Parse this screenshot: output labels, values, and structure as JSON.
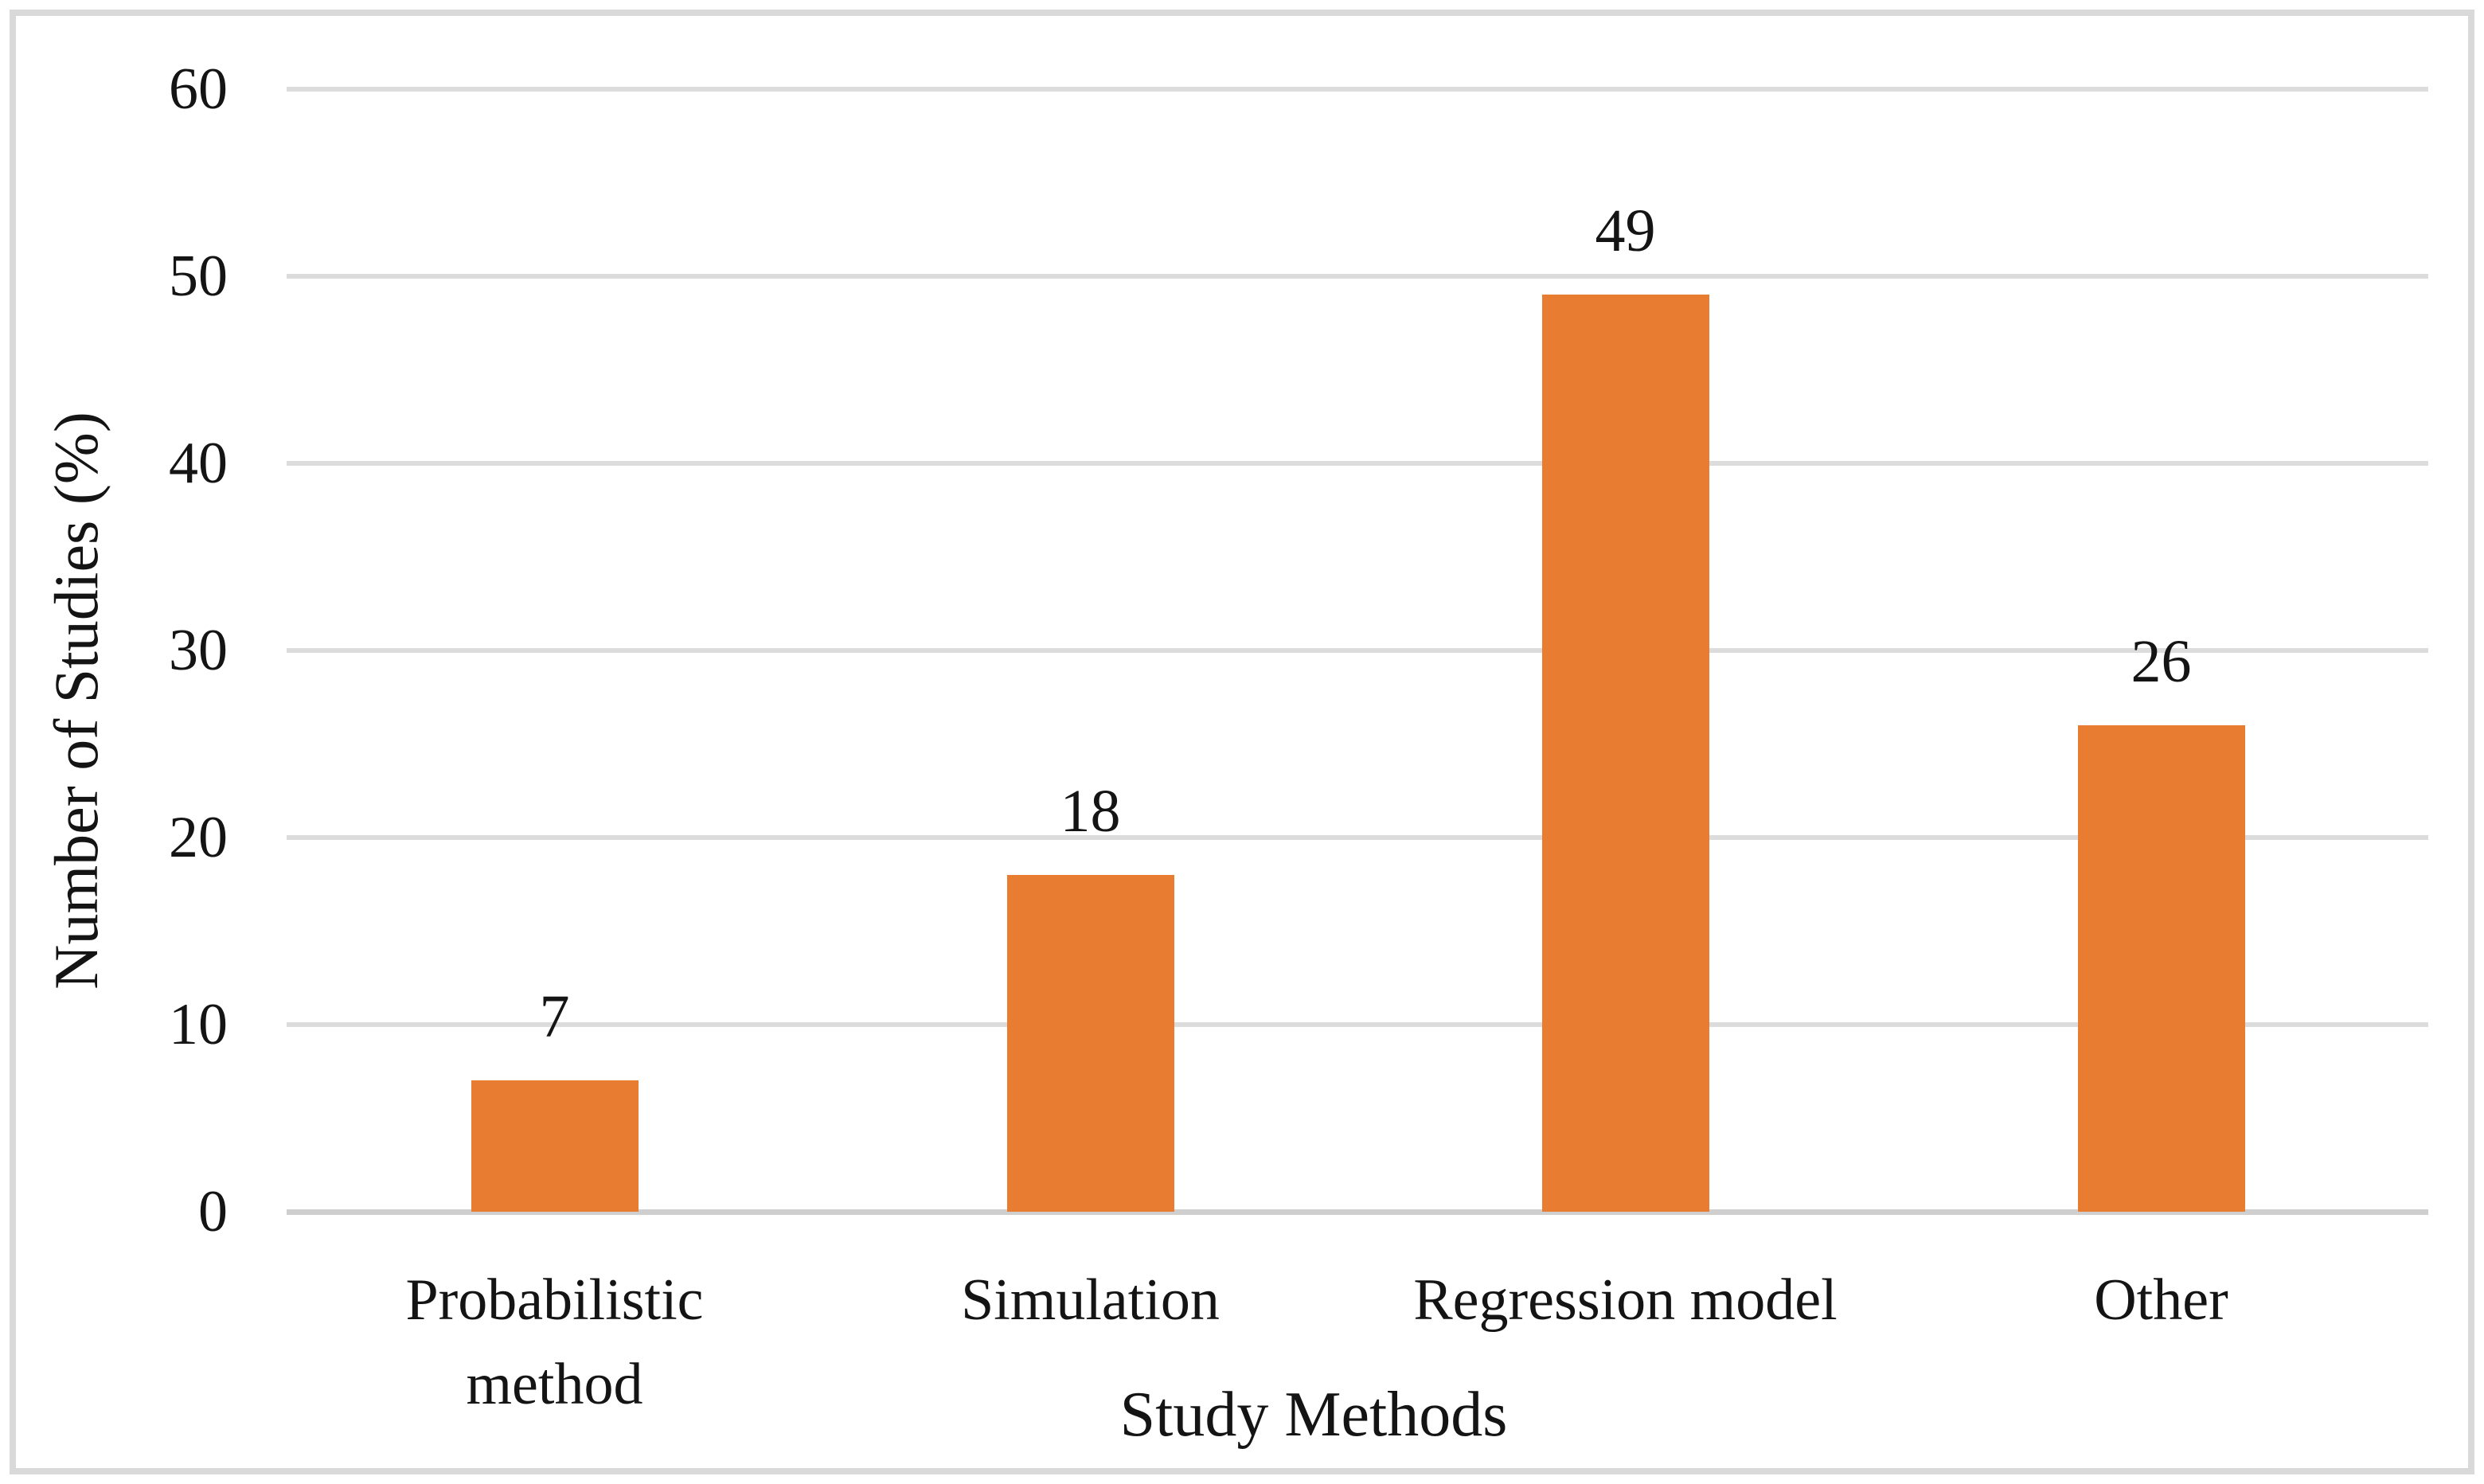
{
  "figure": {
    "background": "#FFFFFF",
    "border_color": "#D9D9D9"
  },
  "chart_data": {
    "type": "bar",
    "title": "",
    "xlabel": "Study Methods",
    "ylabel": "Number of Studies (%)",
    "categories": [
      "Probabilistic method",
      "Simulation",
      "Regression model",
      "Other"
    ],
    "values": [
      7,
      18,
      49,
      26
    ],
    "data_labels": [
      "7",
      "18",
      "49",
      "26"
    ],
    "ylim": [
      0,
      60
    ],
    "yticks": [
      0,
      10,
      20,
      30,
      40,
      50,
      60
    ],
    "grid": "horizontal-only",
    "legend_position": "none",
    "bar_color": "#E87D31",
    "gridline_color": "#DCDCDC",
    "axis_line_color": "#CFCFCF",
    "text_color": "#141414"
  }
}
